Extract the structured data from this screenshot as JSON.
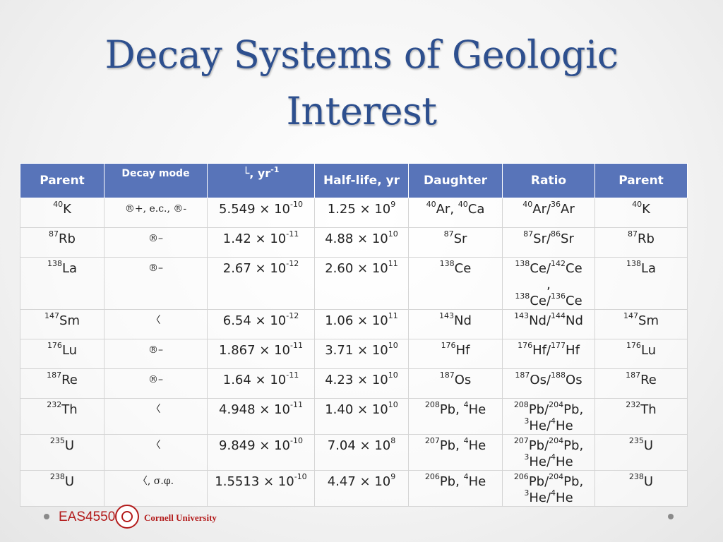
{
  "title": {
    "line1": "Decay Systems of Geologic",
    "line2": "Interest"
  },
  "table": {
    "headers": {
      "parent": "Parent",
      "decay_mode": "Decay mode",
      "lambda_symbol": "└",
      "lambda_text": ", yr",
      "lambda_exp": "-1",
      "half_life": "Half-life, yr",
      "daughter": "Daughter",
      "ratio": "Ratio",
      "parent2": "Parent"
    },
    "rows": [
      {
        "parent_sup": "40",
        "parent": "K",
        "mode": "®+, e.c., ®-",
        "lambda_base": "5.549 × 10",
        "lambda_exp": "-10",
        "half_base": "1.25 × 10",
        "half_exp": "9",
        "daughter": [
          [
            "40",
            "Ar, "
          ],
          [
            "40",
            "Ca"
          ]
        ],
        "ratio": [
          [
            [
              "40",
              "Ar/"
            ],
            [
              "36",
              "Ar"
            ]
          ]
        ],
        "parent2_sup": "40",
        "parent2": "K"
      },
      {
        "parent_sup": "87",
        "parent": "Rb",
        "mode": "®–",
        "lambda_base": "1.42 × 10",
        "lambda_exp": "-11",
        "half_base": "4.88 × 10",
        "half_exp": "10",
        "daughter": [
          [
            "87",
            "Sr"
          ]
        ],
        "ratio": [
          [
            [
              "87",
              "Sr/"
            ],
            [
              "86",
              "Sr"
            ]
          ]
        ],
        "parent2_sup": "87",
        "parent2": "Rb"
      },
      {
        "parent_sup": "138",
        "parent": "La",
        "mode": "®–",
        "lambda_base": "2.67 × 10",
        "lambda_exp": "-12",
        "half_base": "2.60 × 10",
        "half_exp": "11",
        "daughter": [
          [
            "138",
            "Ce"
          ]
        ],
        "ratio": [
          [
            [
              "138",
              "Ce/"
            ],
            [
              "142",
              "Ce"
            ]
          ],
          [
            [
              "",
              ","
            ]
          ],
          [
            [
              "138",
              "Ce/"
            ],
            [
              "136",
              "Ce"
            ]
          ]
        ],
        "parent2_sup": "138",
        "parent2": "La"
      },
      {
        "parent_sup": "147",
        "parent": "Sm",
        "mode": "〈",
        "lambda_base": "6.54 × 10",
        "lambda_exp": "-12",
        "half_base": "1.06 × 10",
        "half_exp": "11",
        "daughter": [
          [
            "143",
            "Nd"
          ]
        ],
        "ratio": [
          [
            [
              "143",
              "Nd/"
            ],
            [
              "144",
              "Nd"
            ]
          ]
        ],
        "parent2_sup": "147",
        "parent2": "Sm"
      },
      {
        "parent_sup": "176",
        "parent": "Lu",
        "mode": "®–",
        "lambda_base": "1.867 × 10",
        "lambda_exp": "-11",
        "half_base": "3.71 × 10",
        "half_exp": "10",
        "daughter": [
          [
            "176",
            "Hf"
          ]
        ],
        "ratio": [
          [
            [
              "176",
              "Hf/"
            ],
            [
              "177",
              "Hf"
            ]
          ]
        ],
        "parent2_sup": "176",
        "parent2": "Lu"
      },
      {
        "parent_sup": "187",
        "parent": "Re",
        "mode": "®–",
        "lambda_base": "1.64 × 10",
        "lambda_exp": "-11",
        "half_base": "4.23 × 10",
        "half_exp": "10",
        "daughter": [
          [
            "187",
            "Os"
          ]
        ],
        "ratio": [
          [
            [
              "187",
              "Os/"
            ],
            [
              "188",
              "Os"
            ]
          ]
        ],
        "parent2_sup": "187",
        "parent2": "Re"
      },
      {
        "parent_sup": "232",
        "parent": "Th",
        "mode": "〈",
        "lambda_base": "4.948 × 10",
        "lambda_exp": "-11",
        "half_base": "1.40 × 10",
        "half_exp": "10",
        "daughter": [
          [
            "208",
            "Pb, "
          ],
          [
            "4",
            "He"
          ]
        ],
        "ratio": [
          [
            [
              "208",
              "Pb/"
            ],
            [
              "204",
              "Pb,"
            ]
          ],
          [
            [
              "3",
              "He/"
            ],
            [
              "4",
              "He"
            ]
          ]
        ],
        "parent2_sup": "232",
        "parent2": "Th"
      },
      {
        "parent_sup": "235",
        "parent": "U",
        "mode": "〈",
        "lambda_base": "9.849 × 10",
        "lambda_exp": "-10",
        "half_base": "7.04 × 10",
        "half_exp": "8",
        "daughter": [
          [
            "207",
            "Pb, "
          ],
          [
            "4",
            "He"
          ]
        ],
        "ratio": [
          [
            [
              "207",
              "Pb/"
            ],
            [
              "204",
              "Pb,"
            ]
          ],
          [
            [
              "3",
              "He/"
            ],
            [
              "4",
              "He"
            ]
          ]
        ],
        "parent2_sup": "235",
        "parent2": "U"
      },
      {
        "parent_sup": "238",
        "parent": "U",
        "mode": "〈, σ.φ.",
        "lambda_base": "1.5513 × 10",
        "lambda_exp": "-10",
        "half_base": "4.47 × 10",
        "half_exp": "9",
        "daughter": [
          [
            "206",
            "Pb, "
          ],
          [
            "4",
            "He"
          ]
        ],
        "ratio": [
          [
            [
              "206",
              "Pb/"
            ],
            [
              "204",
              "Pb,"
            ]
          ],
          [
            [
              "3",
              "He/"
            ],
            [
              "4",
              "He"
            ]
          ]
        ],
        "parent2_sup": "238",
        "parent2": "U"
      }
    ]
  },
  "footer": {
    "course": "EAS4550",
    "university": "Cornell University"
  },
  "colors": {
    "title": "#2d4f8e",
    "header_bg": "#5874b9",
    "brand_red": "#b31b1b"
  }
}
